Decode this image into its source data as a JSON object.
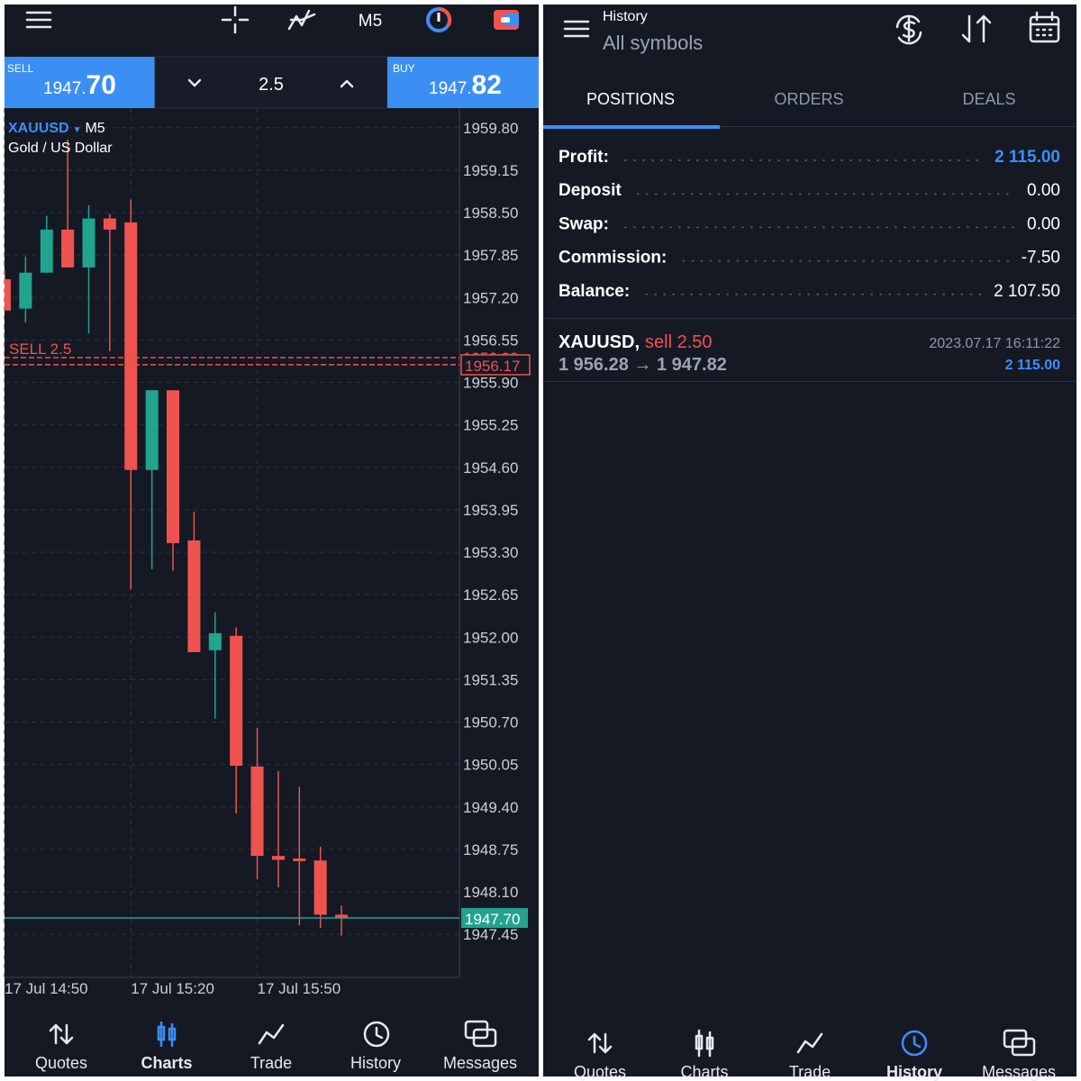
{
  "left": {
    "toolbar": {
      "timeframe": "M5"
    },
    "trade_panel": {
      "sell_label": "SELL",
      "sell_price_main": "1947.",
      "sell_price_big": "70",
      "volume": "2.5",
      "buy_label": "BUY",
      "buy_price_main": "1947.",
      "buy_price_big": "82"
    },
    "chart": {
      "type": "candlestick",
      "symbol": "XAUUSD",
      "timeframe": "M5",
      "description": "Gold / US Dollar",
      "up_color": "#22a38f",
      "down_color": "#ef5350",
      "x": [
        0,
        1,
        2,
        3,
        4,
        5,
        6,
        7,
        8,
        9,
        10,
        11,
        12,
        13,
        14,
        15,
        16
      ],
      "open": [
        1957.48,
        1957.03,
        1957.58,
        1958.24,
        1957.66,
        1958.41,
        1958.35,
        1954.56,
        1955.78,
        1953.48,
        1951.8,
        1952.02,
        1950.02,
        1948.65,
        1948.61,
        1948.58,
        1947.75
      ],
      "high": [
        1957.62,
        1957.83,
        1958.45,
        1959.62,
        1958.61,
        1958.48,
        1958.7,
        1955.78,
        1955.78,
        1953.92,
        1952.38,
        1952.15,
        1950.61,
        1949.95,
        1949.71,
        1948.79,
        1947.89
      ],
      "low": [
        1957.0,
        1956.82,
        1957.58,
        1957.66,
        1956.65,
        1956.38,
        1952.73,
        1953.04,
        1953.02,
        1951.77,
        1950.75,
        1949.3,
        1948.29,
        1948.17,
        1947.59,
        1947.55,
        1947.43
      ],
      "close": [
        1957.0,
        1957.58,
        1958.24,
        1957.66,
        1958.41,
        1958.24,
        1954.56,
        1955.78,
        1953.44,
        1951.77,
        1952.06,
        1950.03,
        1948.65,
        1948.59,
        1948.57,
        1947.75,
        1947.7
      ],
      "xlim": [
        0,
        21.6
      ],
      "xticks": [
        {
          "value": 0,
          "label": "17 Jul 14:50"
        },
        {
          "value": 6,
          "label": "17 Jul 15:20"
        },
        {
          "value": 12,
          "label": "17 Jul 15:50"
        }
      ],
      "ylim": [
        1946.79,
        1960.1
      ],
      "yticks": [
        {
          "value": 1959.8,
          "label": "1959.80"
        },
        1959.15,
        {
          "value": 1958.5,
          "label": "1958.50"
        },
        1957.85,
        {
          "value": 1957.2,
          "label": "1957.20"
        },
        1956.55,
        {
          "value": 1955.9,
          "label": "1955.90"
        },
        1955.25,
        {
          "value": 1954.6,
          "label": "1954.60"
        },
        1953.95,
        {
          "value": 1953.3,
          "label": "1953.30"
        },
        1952.65,
        {
          "value": 1952.0,
          "label": "1952.00"
        },
        1951.35,
        {
          "value": 1950.7,
          "label": "1950.70"
        },
        1950.05,
        {
          "value": 1949.4,
          "label": "1949.40"
        },
        1948.75,
        {
          "value": 1948.1,
          "label": "1948.10"
        },
        1947.45
      ],
      "grid": true,
      "order_line": {
        "label": "SELL 2.5",
        "price": 1956.28,
        "color": "#ef5350"
      },
      "marker_price": 1956.17,
      "current_price": {
        "value": 1947.7,
        "label": "1947.70",
        "color": "#22a38f"
      }
    },
    "nav": [
      "Quotes",
      "Charts",
      "Trade",
      "History",
      "Messages"
    ]
  },
  "right": {
    "header": {
      "title": "History",
      "subtitle": "All symbols"
    },
    "tabs": [
      "POSITIONS",
      "ORDERS",
      "DEALS"
    ],
    "summary": [
      [
        "Profit:",
        "2 115.00"
      ],
      [
        "Deposit",
        "0.00"
      ],
      [
        "Swap:",
        "0.00"
      ],
      [
        "Commission:",
        "-7.50"
      ],
      [
        "Balance:",
        "2 107.50"
      ]
    ],
    "position": {
      "symbol": "XAUUSD,",
      "side": "sell 2.50",
      "time": "2023.07.17 16:11:22",
      "prices": "1 956.28 → 1 947.82",
      "profit": "2 115.00"
    },
    "nav": [
      "Quotes",
      "Charts",
      "Trade",
      "History",
      "Messages"
    ]
  }
}
